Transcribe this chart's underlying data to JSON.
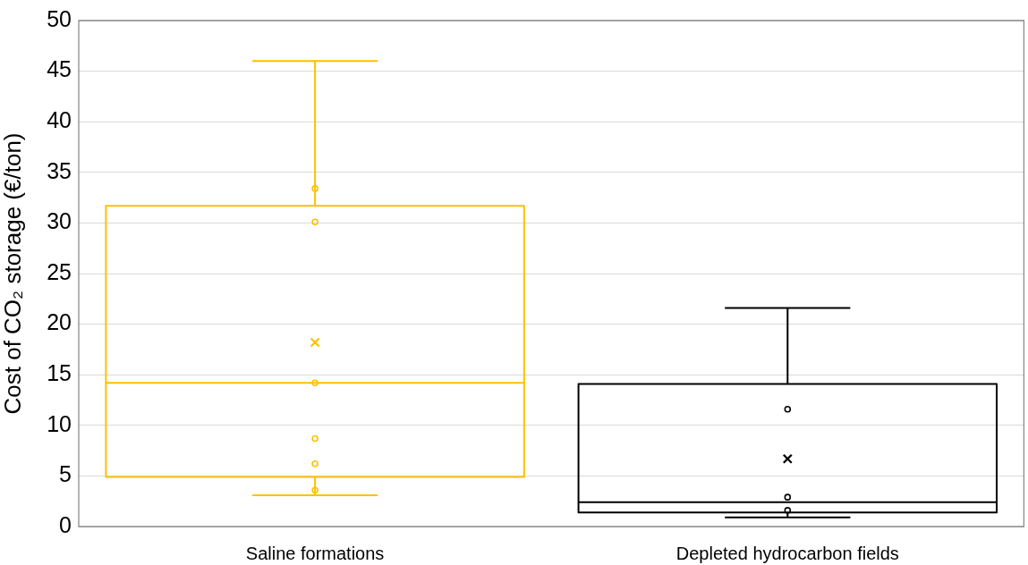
{
  "chart_data": {
    "type": "box",
    "ylabel": "Cost of CO₂ storage (€/ton)",
    "categories": [
      "Saline formations",
      "Depleted hydrocarbon fields"
    ],
    "colors": [
      "#ffc000",
      "#000000"
    ],
    "boxes": [
      {
        "low": 3.1,
        "q1": 4.9,
        "median": 14.2,
        "q3": 31.7,
        "high": 46.0,
        "mean": 18.2
      },
      {
        "low": 0.9,
        "q1": 1.4,
        "median": 2.4,
        "q3": 14.1,
        "high": 21.6,
        "mean": 6.7
      }
    ],
    "series": [
      {
        "type": "scatter",
        "color": "#ffc000",
        "x": [
          "Saline formations",
          "Saline formations",
          "Saline formations",
          "Saline formations",
          "Saline formations",
          "Saline formations"
        ],
        "values": [
          33.4,
          30.1,
          14.2,
          8.7,
          6.2,
          3.6
        ]
      },
      {
        "type": "scatter",
        "color": "#000000",
        "x": [
          "Depleted hydrocarbon fields",
          "Depleted hydrocarbon fields",
          "Depleted hydrocarbon fields"
        ],
        "values": [
          11.6,
          2.9,
          1.6
        ]
      }
    ],
    "ylim": [
      0,
      50
    ],
    "yticks": [
      0,
      5,
      10,
      15,
      20,
      25,
      30,
      35,
      40,
      45,
      50
    ],
    "grid": "y",
    "marker": "circle",
    "legend": false
  }
}
